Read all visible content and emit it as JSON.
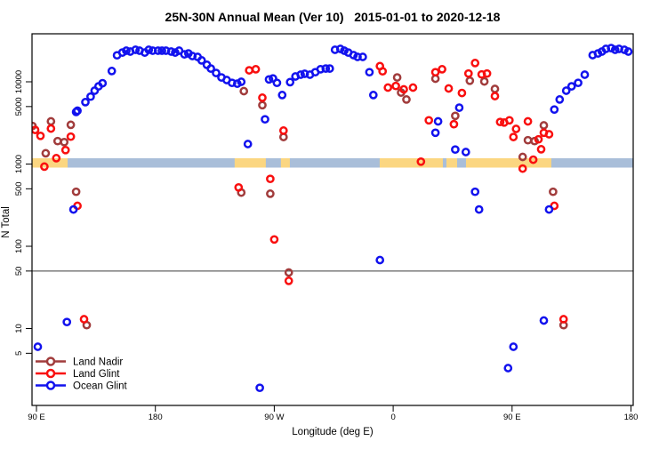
{
  "title": "25N-30N Annual Mean (Ver 10)   2015-01-01 to 2020-12-18",
  "chart_data": {
    "type": "scatter",
    "title": "25N-30N Annual Mean (Ver 10)   2015-01-01 to 2020-12-18",
    "xlabel": "Longitude (deg E)",
    "ylabel": "N Total",
    "x_axis": {
      "note": "degrees measured eastward from 90E; axis wraps 90E>180>90W>0>90E>180",
      "range_deg": [
        86.6,
        541.7
      ],
      "ticks_deg": [
        90,
        180,
        270,
        360,
        450,
        540
      ],
      "tick_labels": [
        "90 E",
        "180",
        "90 W",
        "0",
        "90 E",
        "180"
      ]
    },
    "y_axis": {
      "scale": "log10",
      "range": [
        1.15,
        38500
      ],
      "ticks": [
        10000,
        5000,
        1000,
        500,
        100,
        50,
        10,
        5
      ],
      "tick_labels": [
        "10000",
        "5000",
        "1000",
        "500",
        "100",
        "50",
        "10",
        "5"
      ]
    },
    "reference_line": {
      "y": 50,
      "color": "#3a3a3a"
    },
    "map_strip": {
      "description": "land/ocean map strip drawn at N=1000",
      "center_value": 1000,
      "ocean_color": "#A9BED9",
      "land_color": "#FBD681",
      "extent_deg": [
        86.6,
        541.7
      ],
      "land_segments_deg": [
        [
          86.6,
          113.6
        ],
        [
          240,
          263.6
        ],
        [
          275,
          281.8
        ],
        [
          349.8,
          397.6
        ],
        [
          400.3,
          408.4
        ],
        [
          415.1,
          479.7
        ]
      ]
    },
    "legend": {
      "position": "bottom-left",
      "items": [
        "Land Nadir",
        "Land Glint",
        "Ocean Glint"
      ]
    },
    "series": [
      {
        "name": "Land Nadir",
        "color": "#A13C3C",
        "points": [
          [
            87,
            2900
          ],
          [
            97,
            1350
          ],
          [
            101,
            3300
          ],
          [
            106,
            1900
          ],
          [
            111,
            1850
          ],
          [
            116,
            3000
          ],
          [
            120,
            460
          ],
          [
            128,
            11
          ],
          [
            245,
            450
          ],
          [
            247,
            7700
          ],
          [
            261,
            5200
          ],
          [
            267,
            435
          ],
          [
            277,
            2130
          ],
          [
            281,
            48
          ],
          [
            363,
            11300
          ],
          [
            366,
            7400
          ],
          [
            370,
            6100
          ],
          [
            392,
            10900
          ],
          [
            407,
            3850
          ],
          [
            418,
            10300
          ],
          [
            429,
            10100
          ],
          [
            437,
            8200
          ],
          [
            458,
            1220
          ],
          [
            462,
            1950
          ],
          [
            467,
            1900
          ],
          [
            474,
            2950
          ],
          [
            481,
            460
          ],
          [
            489,
            11
          ]
        ]
      },
      {
        "name": "Land Glint",
        "color": "#F90F0F",
        "points": [
          [
            89,
            2600
          ],
          [
            93,
            2200
          ],
          [
            96,
            930
          ],
          [
            101,
            2700
          ],
          [
            105,
            1180
          ],
          [
            112,
            1480
          ],
          [
            116,
            2150
          ],
          [
            121,
            310
          ],
          [
            126,
            13
          ],
          [
            243,
            520
          ],
          [
            251,
            13800
          ],
          [
            256,
            14200
          ],
          [
            261,
            6400
          ],
          [
            267,
            660
          ],
          [
            270,
            121
          ],
          [
            277,
            2550
          ],
          [
            281,
            38
          ],
          [
            350,
            15500
          ],
          [
            352,
            13400
          ],
          [
            356,
            8500
          ],
          [
            362,
            8900
          ],
          [
            368,
            8100
          ],
          [
            375,
            8500
          ],
          [
            381,
            1070
          ],
          [
            387,
            3400
          ],
          [
            392,
            13100
          ],
          [
            397,
            14200
          ],
          [
            402,
            8300
          ],
          [
            406,
            3050
          ],
          [
            412,
            7300
          ],
          [
            417,
            12600
          ],
          [
            422,
            16900
          ],
          [
            427,
            12300
          ],
          [
            431,
            12600
          ],
          [
            437,
            6700
          ],
          [
            441,
            3250
          ],
          [
            444,
            3200
          ],
          [
            448,
            3400
          ],
          [
            451,
            2130
          ],
          [
            453,
            2670
          ],
          [
            458,
            880
          ],
          [
            462,
            3300
          ],
          [
            466,
            1130
          ],
          [
            470,
            2000
          ],
          [
            472,
            1510
          ],
          [
            474,
            2400
          ],
          [
            478,
            2300
          ],
          [
            482,
            310
          ],
          [
            489,
            13
          ]
        ]
      },
      {
        "name": "Ocean Glint",
        "color": "#1212EE",
        "points": [
          [
            91,
            6
          ],
          [
            113,
            12
          ],
          [
            118,
            280
          ],
          [
            121,
            4450
          ],
          [
            120,
            4300
          ],
          [
            127,
            5650
          ],
          [
            131,
            6600
          ],
          [
            134,
            7800
          ],
          [
            137,
            8800
          ],
          [
            140,
            9600
          ],
          [
            147,
            13500
          ],
          [
            151,
            21000
          ],
          [
            155,
            22700
          ],
          [
            158,
            23900
          ],
          [
            161,
            23300
          ],
          [
            165,
            24500
          ],
          [
            168,
            23900
          ],
          [
            172,
            22700
          ],
          [
            175,
            24500
          ],
          [
            178,
            23900
          ],
          [
            182,
            23900
          ],
          [
            185,
            23900
          ],
          [
            188,
            23900
          ],
          [
            192,
            23300
          ],
          [
            195,
            22700
          ],
          [
            198,
            23900
          ],
          [
            202,
            21600
          ],
          [
            205,
            22100
          ],
          [
            208,
            20600
          ],
          [
            212,
            20100
          ],
          [
            215,
            18200
          ],
          [
            219,
            16100
          ],
          [
            222,
            14500
          ],
          [
            226,
            12800
          ],
          [
            230,
            11300
          ],
          [
            234,
            10500
          ],
          [
            238,
            9700
          ],
          [
            242,
            9500
          ],
          [
            245,
            10000
          ],
          [
            250,
            1750
          ],
          [
            259,
            1.9
          ],
          [
            263,
            3500
          ],
          [
            266,
            10700
          ],
          [
            269,
            11000
          ],
          [
            272,
            9700
          ],
          [
            276,
            6900
          ],
          [
            282,
            9900
          ],
          [
            286,
            11600
          ],
          [
            290,
            12200
          ],
          [
            293,
            12500
          ],
          [
            297,
            12200
          ],
          [
            301,
            13100
          ],
          [
            305,
            14200
          ],
          [
            309,
            14500
          ],
          [
            312,
            14500
          ],
          [
            316,
            24500
          ],
          [
            320,
            25100
          ],
          [
            323,
            23900
          ],
          [
            326,
            22700
          ],
          [
            330,
            21100
          ],
          [
            333,
            20100
          ],
          [
            337,
            20100
          ],
          [
            342,
            13100
          ],
          [
            345,
            6900
          ],
          [
            350,
            68
          ],
          [
            392,
            2400
          ],
          [
            394,
            3300
          ],
          [
            407,
            1500
          ],
          [
            410,
            4850
          ],
          [
            415,
            1400
          ],
          [
            422,
            460
          ],
          [
            425,
            280
          ],
          [
            447,
            3.3
          ],
          [
            451,
            6
          ],
          [
            474,
            12.5
          ],
          [
            478,
            280
          ],
          [
            482,
            4600
          ],
          [
            486,
            6100
          ],
          [
            491,
            7800
          ],
          [
            495,
            8800
          ],
          [
            500,
            9700
          ],
          [
            505,
            12200
          ],
          [
            511,
            21100
          ],
          [
            515,
            22100
          ],
          [
            518,
            23300
          ],
          [
            521,
            25100
          ],
          [
            525,
            25700
          ],
          [
            528,
            24500
          ],
          [
            531,
            25100
          ],
          [
            535,
            24500
          ],
          [
            538,
            23300
          ]
        ]
      }
    ]
  }
}
